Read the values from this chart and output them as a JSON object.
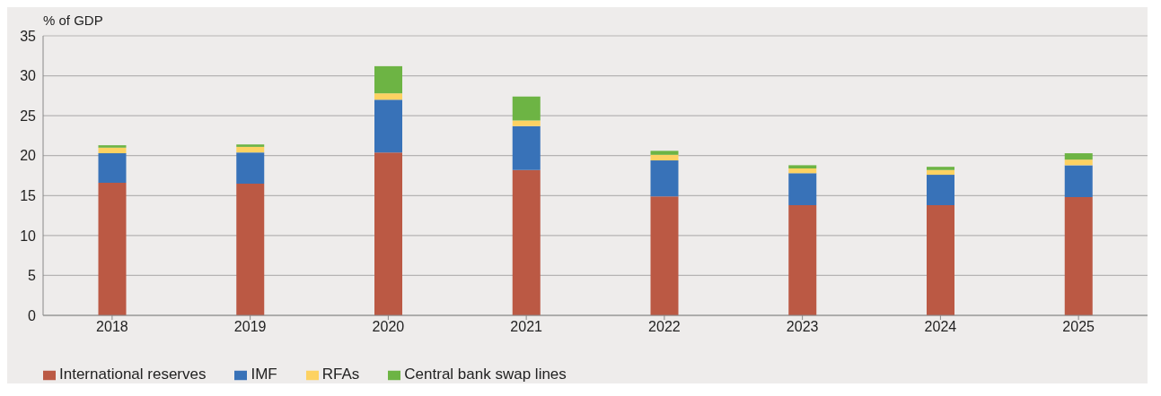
{
  "chart_data": {
    "type": "bar",
    "ylabel": "% of GDP",
    "categories": [
      "2018",
      "2019",
      "2020",
      "2021",
      "2022",
      "2023",
      "2024",
      "2025"
    ],
    "stacked": true,
    "ylim": [
      0,
      35
    ],
    "yticks": [
      0,
      5,
      10,
      15,
      20,
      25,
      30,
      35
    ],
    "grid": "y",
    "legend": "bottom left",
    "series": [
      {
        "name": "International reserves",
        "color": "#bb5944",
        "values": [
          16.6,
          16.5,
          20.4,
          18.2,
          14.9,
          13.8,
          13.8,
          14.8
        ]
      },
      {
        "name": "IMF",
        "color": "#3872b8",
        "values": [
          3.7,
          3.9,
          6.6,
          5.5,
          4.5,
          4.0,
          3.8,
          4.0
        ]
      },
      {
        "name": "RFAs",
        "color": "#fdd262",
        "values": [
          0.7,
          0.7,
          0.8,
          0.7,
          0.7,
          0.6,
          0.6,
          0.7
        ]
      },
      {
        "name": "Central bank swap lines",
        "color": "#6db444",
        "values": [
          0.3,
          0.3,
          3.4,
          3.0,
          0.5,
          0.4,
          0.4,
          0.8
        ]
      }
    ]
  }
}
